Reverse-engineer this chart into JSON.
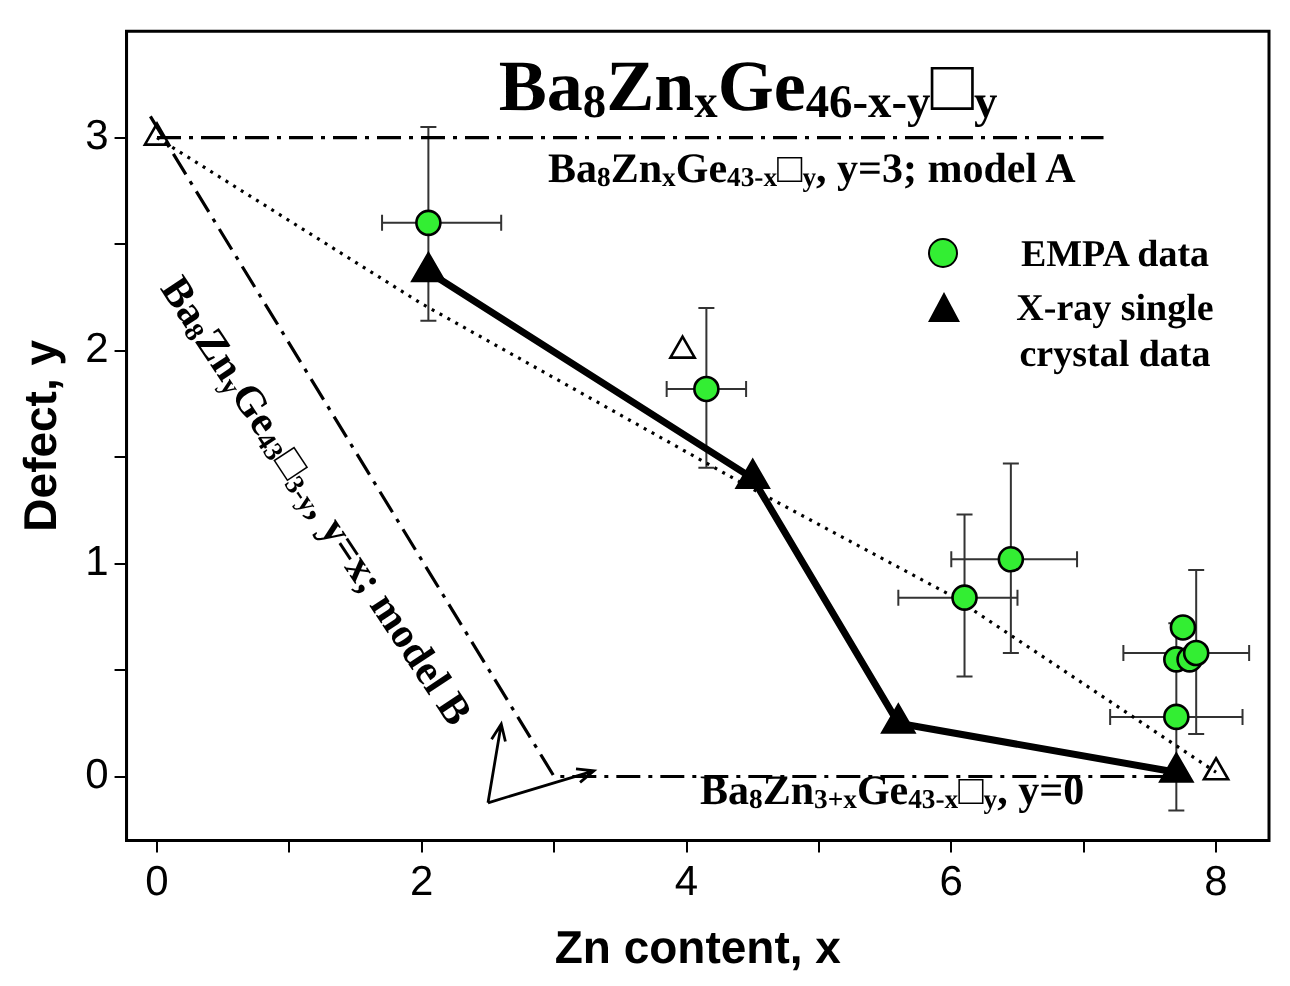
{
  "chart_data": {
    "type": "scatter",
    "title": "Ba$_{8}$Zn$_{x}$Ge$_{46-x-y}$□$_{y}$",
    "xlabel": "Zn content, x",
    "ylabel": "Defect, y",
    "xlim": [
      -0.23,
      8.4
    ],
    "ylim": [
      -0.3,
      3.5
    ],
    "xticks": [
      0,
      {
        "value": 1,
        "label": null
      },
      2,
      {
        "value": 3,
        "label": null
      },
      4,
      {
        "value": 5,
        "label": null
      },
      6,
      {
        "value": 7,
        "label": null
      },
      8
    ],
    "yticks": [
      0,
      {
        "value": 0.5,
        "label": null
      },
      1,
      {
        "value": 1.5,
        "label": null
      },
      2,
      {
        "value": 2.5,
        "label": null
      },
      3
    ],
    "grid": false,
    "legend": "top right",
    "series": [
      {
        "name": "EMPA data",
        "type": "scatter",
        "marker": "circle",
        "color": "#33ee33",
        "x": [
          2.05,
          4.15,
          6.1,
          6.45,
          7.75,
          7.7,
          7.8,
          7.7,
          7.85
        ],
        "values": [
          2.6,
          1.82,
          0.84,
          1.02,
          0.7,
          0.55,
          0.55,
          0.28,
          0.58
        ],
        "errors": [
          [
            2.14,
            3.05
          ],
          [
            1.45,
            2.2
          ],
          [
            0.47,
            1.23
          ],
          [
            0.58,
            1.47
          ],
          null,
          null,
          null,
          [
            -0.16,
            0.72
          ],
          [
            0.2,
            0.97
          ]
        ],
        "xerrors": [
          [
            1.7,
            2.6
          ],
          [
            3.85,
            4.45
          ],
          [
            5.6,
            6.5
          ],
          [
            6.0,
            6.95
          ],
          null,
          null,
          null,
          [
            7.2,
            8.2
          ],
          [
            7.3,
            8.25
          ]
        ]
      },
      {
        "name": "X-ray single crystal data",
        "type": "line",
        "marker": "triangle",
        "line_style": "solid",
        "color": "#000000",
        "x": [
          2.05,
          4.5,
          5.6,
          7.7
        ],
        "values": [
          2.37,
          1.4,
          0.25,
          0.02
        ]
      },
      {
        "type": "line",
        "marker": "none",
        "line_style": "dotted",
        "color": "#000000",
        "x": [
          0,
          2,
          4.5,
          6,
          8
        ],
        "values": [
          3,
          2.22,
          1.35,
          0.85,
          0.02
        ]
      },
      {
        "type": "line",
        "marker": "none",
        "line_style": "dashed",
        "color": "#000000",
        "x": [
          0,
          7.15
        ],
        "values": [
          3,
          3
        ]
      },
      {
        "type": "line",
        "marker": "none",
        "line_style": "dashed",
        "color": "#000000",
        "x": [
          -0.05,
          3,
          7.7
        ],
        "values": [
          3.1,
          0,
          0
        ]
      },
      {
        "type": "scatter",
        "marker": "triangle",
        "color": "#000000",
        "x": [
          0,
          3.97,
          8
        ],
        "values": [
          3,
          2,
          0.02
        ]
      }
    ],
    "annotations": [
      "Ba$_{8}$Zn$_{x}$Ge$_{43-x}$□$_{y}$, y=3; model A",
      "Ba$_{8}$Zn$_{y}$Ge$_{43}$□$_{3-y}$, y=x; model B",
      "Ba$_{8}$Zn$_{3+x}$Ge$_{43-x}$□$_{y}$, y=0"
    ]
  }
}
